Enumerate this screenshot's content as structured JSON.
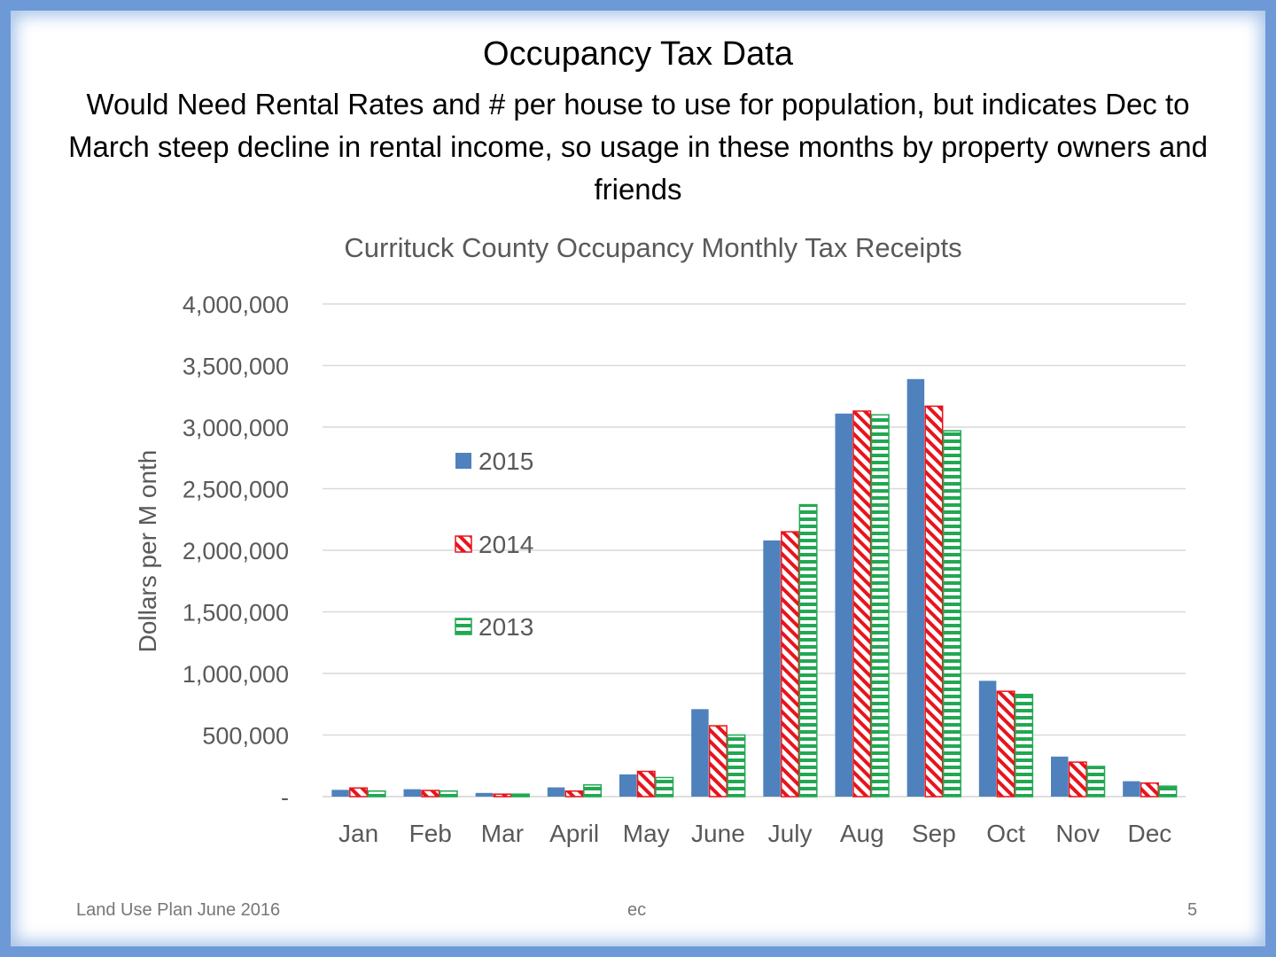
{
  "slide": {
    "title": "Occupancy Tax Data",
    "subtitle": "Would Need Rental Rates and # per house to use for population, but indicates Dec to March steep decline in rental income, so usage in these months by property owners and friends",
    "footer_left": "Land Use Plan June 2016",
    "footer_center": "ec",
    "footer_right": "5"
  },
  "chart_data": {
    "type": "bar",
    "title": "Currituck County Occupancy Monthly Tax Receipts",
    "xlabel": "",
    "ylabel": "Dollars per M onth",
    "ylim": [
      0,
      4000000
    ],
    "yticks": [
      0,
      500000,
      1000000,
      1500000,
      2000000,
      2500000,
      3000000,
      3500000,
      4000000
    ],
    "ytick_labels": [
      "-",
      "500,000",
      "1,000,000",
      "1,500,000",
      "2,000,000",
      "2,500,000",
      "3,000,000",
      "3,500,000",
      "4,000,000"
    ],
    "grid": true,
    "legend_position": "center-left inside plot",
    "categories": [
      "Jan",
      "Feb",
      "Mar",
      "April",
      "May",
      "June",
      "July",
      "Aug",
      "Sep",
      "Oct",
      "Nov",
      "Dec"
    ],
    "series": [
      {
        "name": "2015",
        "color": "#4f81bd",
        "pattern": "solid",
        "values": [
          55000,
          60000,
          30000,
          75000,
          180000,
          710000,
          2080000,
          3110000,
          3390000,
          940000,
          325000,
          125000
        ]
      },
      {
        "name": "2014",
        "color": "#e8141c",
        "pattern": "diagonal-stripes",
        "values": [
          70000,
          50000,
          20000,
          45000,
          205000,
          575000,
          2150000,
          3130000,
          3170000,
          855000,
          280000,
          110000
        ]
      },
      {
        "name": "2013",
        "color": "#21a852",
        "pattern": "horizontal-stripes",
        "values": [
          45000,
          45000,
          20000,
          95000,
          155000,
          500000,
          2370000,
          3100000,
          2970000,
          830000,
          245000,
          85000
        ]
      }
    ]
  }
}
